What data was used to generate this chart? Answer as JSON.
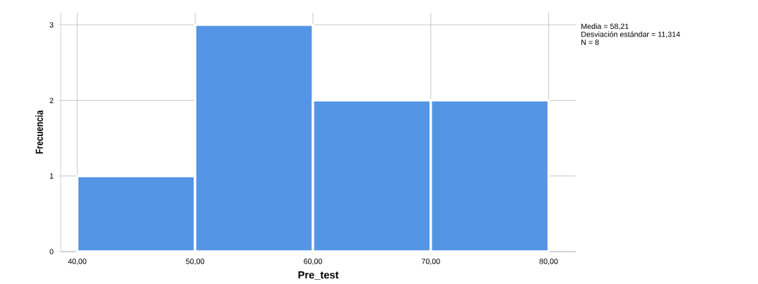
{
  "chart_data": {
    "type": "histogram",
    "xlabel": "Pre_test",
    "ylabel": "Frecuencia",
    "bins": [
      40,
      50,
      60,
      70,
      80
    ],
    "values": [
      1,
      3,
      2,
      2
    ],
    "color": "#5595e5",
    "xlim": [
      38.6,
      82.3
    ],
    "ylim": [
      0,
      3.16
    ],
    "xticks": [
      {
        "value": 40,
        "label": "40,00"
      },
      {
        "value": 50,
        "label": "50,00"
      },
      {
        "value": 60,
        "label": "60,00"
      },
      {
        "value": 70,
        "label": "70,00"
      },
      {
        "value": 80,
        "label": "80,00"
      }
    ],
    "yticks": [
      0,
      1,
      2,
      3
    ],
    "grid": true,
    "annotations": [
      "Media = 58,21",
      "Desviación estándar = 11,314",
      "N = 8"
    ]
  }
}
